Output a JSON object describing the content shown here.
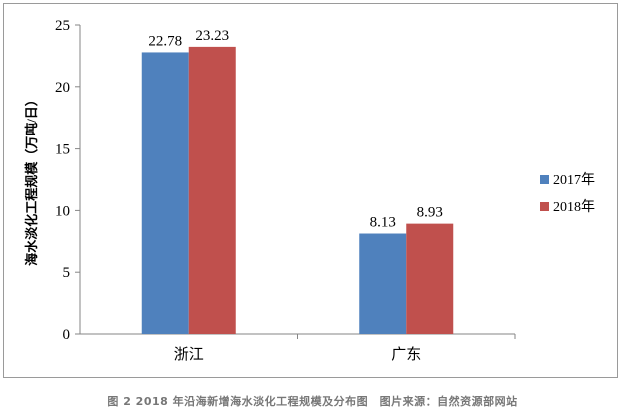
{
  "chart_data": {
    "type": "bar",
    "title": "",
    "ylabel": "海水淡化工程规模（万吨/日）",
    "xlabel": "",
    "categories": [
      "浙江",
      "广东"
    ],
    "series": [
      {
        "name": "2017年",
        "values": [
          22.78,
          8.13
        ],
        "color": "#4F81BD"
      },
      {
        "name": "2018年",
        "values": [
          23.23,
          8.93
        ],
        "color": "#C0504D"
      }
    ],
    "ylim": [
      0,
      25
    ],
    "yticks": [
      0,
      5,
      10,
      15,
      20,
      25
    ],
    "grid": false,
    "legend": "right",
    "data_labels": true
  },
  "caption": "图 2 2018 年沿海新增海水淡化工程规模及分布图　图片来源：自然资源部网站"
}
